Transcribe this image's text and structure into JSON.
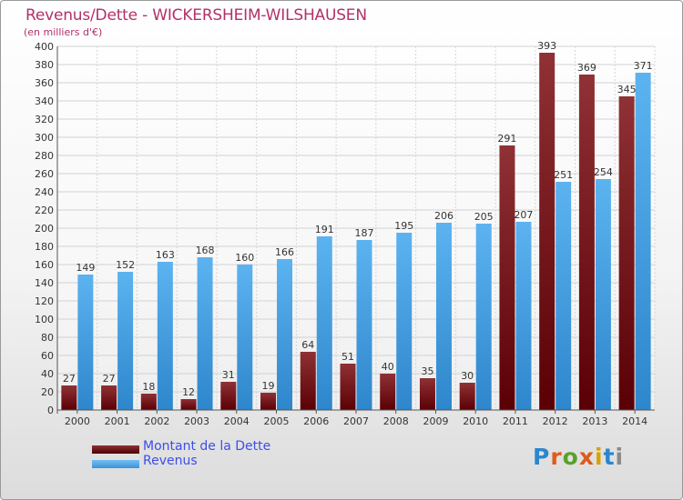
{
  "header": {
    "title": "Revenus/Dette - WICKERSHEIM-WILSHAUSEN",
    "subtitle": "(en milliers d'€)"
  },
  "legend": {
    "debt_label": "Montant de la Dette",
    "revenue_label": "Revenus"
  },
  "logo": {
    "text": "Proxiti"
  },
  "colors": {
    "debt": "#7a1418",
    "revenue": "#4aa3e6",
    "title": "#b3306a",
    "legend_text": "#3e4ee8"
  },
  "chart_data": {
    "type": "bar",
    "title": "Revenus/Dette - WICKERSHEIM-WILSHAUSEN",
    "subtitle": "(en milliers d'€)",
    "categories": [
      "2000",
      "2001",
      "2002",
      "2003",
      "2004",
      "2005",
      "2006",
      "2007",
      "2008",
      "2009",
      "2010",
      "2011",
      "2012",
      "2013",
      "2014"
    ],
    "series": [
      {
        "name": "Montant de la Dette",
        "values": [
          27,
          27,
          18,
          12,
          31,
          19,
          64,
          51,
          40,
          35,
          30,
          291,
          393,
          369,
          345
        ]
      },
      {
        "name": "Revenus",
        "values": [
          149,
          152,
          163,
          168,
          160,
          166,
          191,
          187,
          195,
          206,
          205,
          207,
          251,
          254,
          371
        ]
      }
    ],
    "ylim": [
      0,
      400
    ],
    "yticks": [
      0,
      20,
      40,
      60,
      80,
      100,
      120,
      140,
      160,
      180,
      200,
      220,
      240,
      260,
      280,
      300,
      320,
      340,
      360,
      380,
      400
    ],
    "grid": true,
    "legend_position": "bottom-left"
  }
}
